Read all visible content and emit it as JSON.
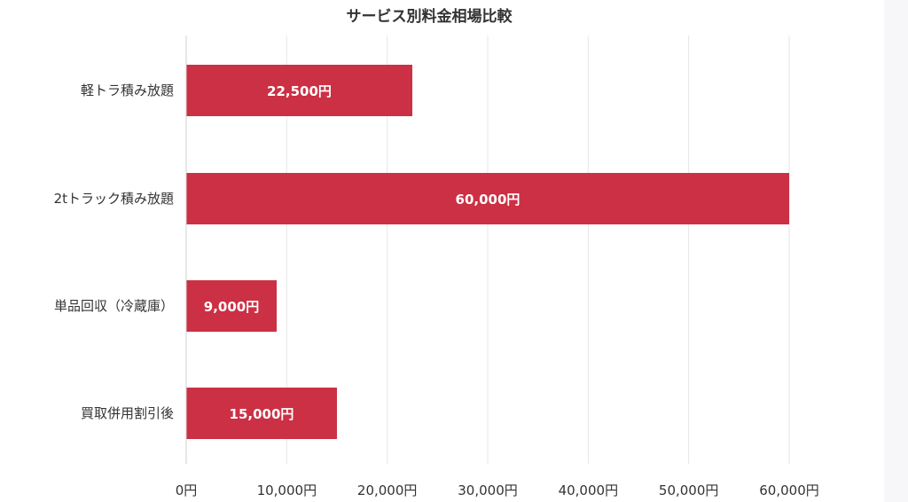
{
  "chart_data": {
    "type": "bar",
    "orientation": "horizontal",
    "title": "サービス別料金相場比較",
    "categories": [
      "軽トラ積み放題",
      "2tトラック積み放題",
      "単品回収（冷蔵庫）",
      "買取併用割引後"
    ],
    "values": [
      22500,
      60000,
      9000,
      15000
    ],
    "value_labels": [
      "22,500円",
      "60,000円",
      "9,000円",
      "15,000円"
    ],
    "xlim": [
      0,
      60000
    ],
    "x_ticks": [
      0,
      10000,
      20000,
      30000,
      40000,
      50000,
      60000
    ],
    "x_tick_labels": [
      "0円",
      "10,000円",
      "20,000円",
      "30,000円",
      "40,000円",
      "50,000円",
      "60,000円"
    ],
    "xlabel": "",
    "ylabel": "",
    "grid": true,
    "legend": "none",
    "colors": {
      "bar": "#cc3044",
      "grid": "#e6e6e6",
      "text": "#333333",
      "value_text": "#ffffff"
    }
  }
}
